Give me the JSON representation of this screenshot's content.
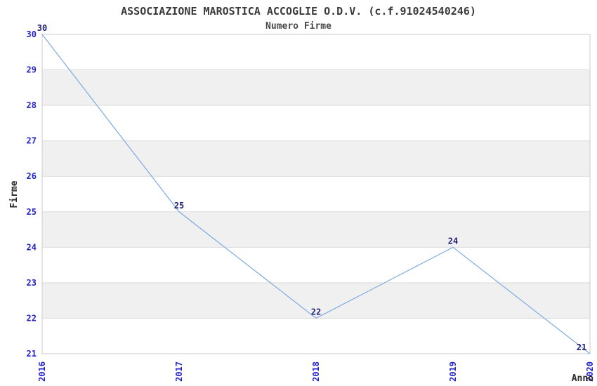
{
  "chart_data": {
    "type": "line",
    "title": "ASSOCIAZIONE MAROSTICA ACCOGLIE O.D.V. (c.f.91024540246)",
    "subtitle": "Numero Firme",
    "xlabel": "Anno",
    "ylabel": "Firme",
    "categories": [
      "2016",
      "2017",
      "2018",
      "2019",
      "2020"
    ],
    "series": [
      {
        "name": "Numero Firme",
        "values": [
          30,
          25,
          22,
          24,
          21
        ]
      }
    ],
    "ylim": [
      21,
      30
    ],
    "ytick_step": 1,
    "xtick_rotation": -90,
    "grid": "alternating-horizontal-bands",
    "legend": "none",
    "markers": "none",
    "colors": {
      "line": "#7cabe2",
      "tick_label": "#2323cc",
      "value_label": "#1f1f77",
      "band": "#f0f0f0",
      "gridline": "#dcdcdc",
      "plot_border": "#cccccc",
      "title": "#3a3a3a",
      "axis_title": "#2a2a2a",
      "background": "#ffffff"
    }
  }
}
